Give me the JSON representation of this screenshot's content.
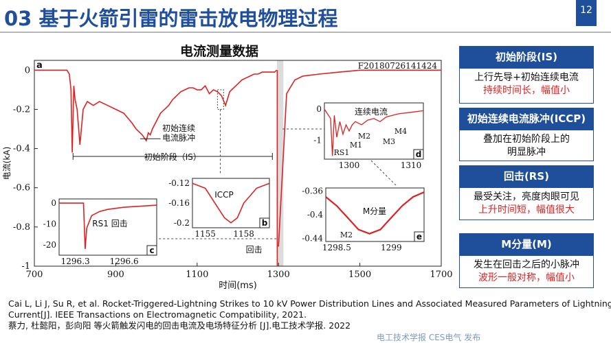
{
  "slide": {
    "title": "03 基于火箭引雷的雷击放电物理过程",
    "page_number": "12",
    "chart_title": "电流测量数据",
    "brand_color": "#1f4e9a",
    "highlight_color": "#e02020"
  },
  "panels": [
    {
      "heading": "初始阶段(IS)",
      "lines": [
        "上行先导+初始连续电流"
      ],
      "highlight": "持续时间长，幅值小"
    },
    {
      "heading": "初始连续电流脉冲(ICCP)",
      "lines": [
        "叠加在初始阶段上的",
        "明显脉冲"
      ],
      "highlight": ""
    },
    {
      "heading": "回击(RS)",
      "lines": [
        "最受关注，亮度肉眼可见"
      ],
      "highlight": "上升时间短，幅值很大"
    },
    {
      "heading": "M分量(M)",
      "lines": [
        "发生在回击之后的小脉冲"
      ],
      "highlight": "波形一般对称，幅值小"
    }
  ],
  "references": [
    "Cai L, Li J, Su R, et al. Rocket-Triggered-Lightning Strikes to 10 kV Power Distribution Lines and Associated Measured Parameters of Lightning",
    "Current[J]. IEEE Transactions on Electromagnetic Compatibility, 2021.",
    "蔡力, 杜懿阳，彭向阳 等火箭触发闪电的回击电流及电场特征分析 [J].电工技术学报. 2022"
  ],
  "watermark": "电工技术学报 CES电气 发布",
  "chart_data": {
    "type": "line",
    "panel_label": "a",
    "record_id": "F20180726141424",
    "xlabel": "时间(ms)",
    "ylabel": "电流(kA)",
    "xlim": [
      700,
      1700
    ],
    "ylim": [
      -1,
      0.05
    ],
    "x_ticks": [
      "700",
      "900",
      "1100",
      "1300",
      "1500",
      "1700"
    ],
    "y_ticks": [
      "0",
      "-0.2",
      "-0.4",
      "-0.6",
      "-0.8",
      "-1"
    ],
    "series_color": "#e02020",
    "series": [
      {
        "x": [
          700,
          780,
          786,
          790,
          793,
          797,
          800,
          805,
          812,
          820,
          830,
          845,
          860,
          880,
          900,
          920,
          940,
          950,
          965,
          975,
          980,
          985,
          990,
          1000,
          1010,
          1020,
          1030,
          1040,
          1050,
          1060,
          1070,
          1080,
          1090,
          1100,
          1110,
          1120,
          1130,
          1140,
          1150,
          1160,
          1170,
          1180,
          1190,
          1200,
          1210,
          1220,
          1230,
          1240,
          1250,
          1260,
          1270,
          1280,
          1290,
          1296
        ],
        "y": [
          0,
          0,
          -0.02,
          -0.1,
          -0.42,
          -0.08,
          -0.15,
          -0.2,
          -0.38,
          -0.2,
          -0.16,
          -0.18,
          -0.16,
          -0.18,
          -0.2,
          -0.22,
          -0.27,
          -0.3,
          -0.33,
          -0.36,
          -0.32,
          -0.33,
          -0.3,
          -0.26,
          -0.22,
          -0.2,
          -0.18,
          -0.15,
          -0.13,
          -0.11,
          -0.1,
          -0.09,
          -0.09,
          -0.1,
          -0.1,
          -0.08,
          -0.12,
          -0.1,
          -0.11,
          -0.13,
          -0.18,
          -0.11,
          -0.09,
          -0.07,
          -0.05,
          -0.04,
          -0.03,
          -0.02,
          -0.02,
          -0.01,
          -0.01,
          -0.01,
          -0.01,
          0
        ]
      },
      {
        "x": [
          1300,
          1320,
          1340,
          1360,
          1400,
          1450,
          1500,
          1600,
          1700
        ],
        "y": [
          -0.9,
          -0.12,
          -0.05,
          -0.03,
          -0.02,
          -0.01,
          0,
          0,
          0
        ]
      }
    ],
    "annotations": {
      "initial_stage": "初始阶段（IS）",
      "iccp_note": "初始连续\n电流脉冲",
      "return_stroke": "回击"
    },
    "insets": [
      {
        "label": "b",
        "title": "ICCP",
        "xlim": [
          1154,
          1160
        ],
        "ylim": [
          -0.21,
          -0.11
        ],
        "x_ticks": [
          "1155",
          "1158"
        ],
        "y_ticks": [
          "-0.12",
          "-0.16",
          "-0.2"
        ],
        "x": [
          1154,
          1155,
          1156,
          1156.5,
          1157,
          1157.5,
          1158,
          1159,
          1160
        ],
        "y": [
          -0.12,
          -0.13,
          -0.17,
          -0.19,
          -0.2,
          -0.19,
          -0.16,
          -0.13,
          -0.12
        ]
      },
      {
        "label": "c",
        "annotation": "RS1  回击",
        "xlim": [
          1296.2,
          1296.8
        ],
        "ylim": [
          -25,
          2
        ],
        "x_ticks": [
          "1296.3",
          "1296.6"
        ],
        "y_ticks": [
          "0",
          "-10",
          "-20"
        ],
        "x": [
          1296.2,
          1296.35,
          1296.36,
          1296.37,
          1296.4,
          1296.45,
          1296.5,
          1296.6,
          1296.8
        ],
        "y": [
          0,
          0,
          -22,
          -12,
          -6,
          -4,
          -3,
          -2,
          -1
        ]
      },
      {
        "label": "d",
        "title": "连续电流",
        "xlim": [
          1296,
          1312
        ],
        "ylim": [
          -1.6,
          0.2
        ],
        "x_ticks": [
          "1300",
          "1310"
        ],
        "y_ticks": [
          "0",
          "-1"
        ],
        "markers": [
          "RS1",
          "M1",
          "M2",
          "M3",
          "M4"
        ],
        "x": [
          1296,
          1297,
          1297.3,
          1297.6,
          1298,
          1298.5,
          1299,
          1299.5,
          1300,
          1300.5,
          1301,
          1302,
          1303,
          1304,
          1305,
          1306,
          1308,
          1310,
          1312
        ],
        "y": [
          0,
          -0.3,
          -1.5,
          -0.2,
          -0.9,
          -0.4,
          -0.8,
          -0.5,
          -0.7,
          -0.5,
          -0.4,
          -0.5,
          -0.35,
          -0.3,
          -0.4,
          -0.25,
          -0.15,
          -0.1,
          -0.05
        ]
      },
      {
        "label": "e",
        "title": "M分量",
        "marker": "M2",
        "xlim": [
          1298.4,
          1299.3
        ],
        "ylim": [
          -0.445,
          -0.355
        ],
        "x_ticks": [
          "1298.5",
          "1299"
        ],
        "y_ticks": [
          "-0.36",
          "-0.4",
          "-0.44"
        ],
        "x": [
          1298.4,
          1298.5,
          1298.6,
          1298.7,
          1298.8,
          1298.9,
          1299,
          1299.1,
          1299.2,
          1299.3
        ],
        "y": [
          -0.37,
          -0.385,
          -0.405,
          -0.425,
          -0.432,
          -0.425,
          -0.405,
          -0.385,
          -0.37,
          -0.362
        ]
      }
    ]
  }
}
